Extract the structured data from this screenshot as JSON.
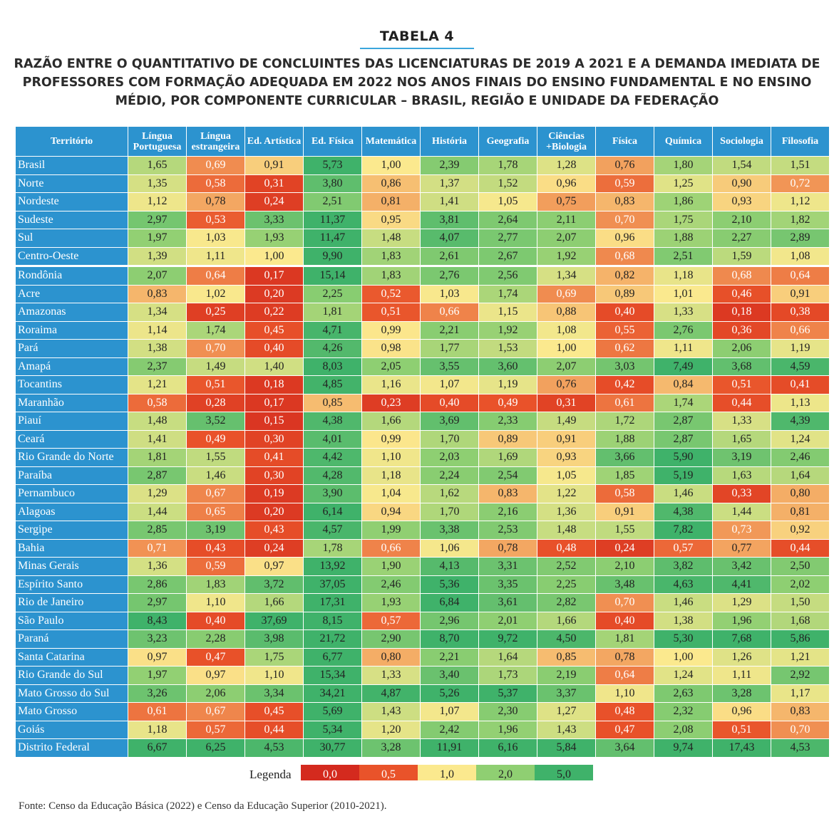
{
  "label": "TABELA 4",
  "title": "RAZÃO ENTRE O QUANTITATIVO DE CONCLUINTES DAS LICENCIATURAS DE 2019 A 2021 E A DEMANDA IMEDIATA DE PROFESSORES COM FORMAÇÃO ADEQUADA EM 2022 NOS ANOS FINAIS DO ENSINO FUNDAMENTAL E NO ENSINO MÉDIO, POR COMPONENTE CURRICULAR – BRASIL, REGIÃO E UNIDADE DA FEDERAÇÃO",
  "table": {
    "headers": [
      "Território",
      "Língua Portuguesa",
      "Língua estrangeira",
      "Ed. Artística",
      "Ed. Física",
      "Matemática",
      "História",
      "Geografia",
      "Ciências +Biologia",
      "Física",
      "Química",
      "Sociologia",
      "Filosofia"
    ],
    "rows": [
      {
        "name": "Brasil",
        "values": [
          "1,65",
          "0,69",
          "0,91",
          "5,73",
          "1,00",
          "2,39",
          "1,78",
          "1,28",
          "0,76",
          "1,80",
          "1,54",
          "1,51"
        ]
      },
      {
        "name": "Norte",
        "values": [
          "1,35",
          "0,58",
          "0,31",
          "3,80",
          "0,86",
          "1,37",
          "1,52",
          "0,96",
          "0,59",
          "1,25",
          "0,90",
          "0,72"
        ]
      },
      {
        "name": "Nordeste",
        "values": [
          "1,12",
          "0,78",
          "0,24",
          "2,51",
          "0,81",
          "1,41",
          "1,05",
          "0,75",
          "0,83",
          "1,86",
          "0,93",
          "1,12"
        ]
      },
      {
        "name": "Sudeste",
        "values": [
          "2,97",
          "0,53",
          "3,33",
          "11,37",
          "0,95",
          "3,81",
          "2,64",
          "2,11",
          "0,70",
          "1,75",
          "2,10",
          "1,82"
        ]
      },
      {
        "name": "Sul",
        "values": [
          "1,97",
          "1,03",
          "1,93",
          "11,47",
          "1,48",
          "4,07",
          "2,77",
          "2,07",
          "0,96",
          "1,88",
          "2,27",
          "2,89"
        ]
      },
      {
        "name": "Centro-Oeste",
        "values": [
          "1,39",
          "1,11",
          "1,00",
          "9,90",
          "1,83",
          "2,61",
          "2,67",
          "1,92",
          "0,68",
          "2,51",
          "1,59",
          "1,08"
        ]
      },
      {
        "name": "Rondônia",
        "values": [
          "2,07",
          "0,64",
          "0,17",
          "15,14",
          "1,83",
          "2,76",
          "2,56",
          "1,34",
          "0,82",
          "1,18",
          "0,68",
          "0,64"
        ]
      },
      {
        "name": "Acre",
        "values": [
          "0,83",
          "1,02",
          "0,20",
          "2,25",
          "0,52",
          "1,03",
          "1,74",
          "0,69",
          "0,89",
          "1,01",
          "0,46",
          "0,91"
        ]
      },
      {
        "name": "Amazonas",
        "values": [
          "1,34",
          "0,25",
          "0,22",
          "1,81",
          "0,51",
          "0,66",
          "1,15",
          "0,88",
          "0,40",
          "1,33",
          "0,18",
          "0,38"
        ]
      },
      {
        "name": "Roraima",
        "values": [
          "1,14",
          "1,74",
          "0,45",
          "4,71",
          "0,99",
          "2,21",
          "1,92",
          "1,08",
          "0,55",
          "2,76",
          "0,36",
          "0,66"
        ]
      },
      {
        "name": "Pará",
        "values": [
          "1,38",
          "0,70",
          "0,40",
          "4,26",
          "0,98",
          "1,77",
          "1,53",
          "1,00",
          "0,62",
          "1,11",
          "2,06",
          "1,19"
        ]
      },
      {
        "name": "Amapá",
        "values": [
          "2,37",
          "1,49",
          "1,40",
          "8,03",
          "2,05",
          "3,55",
          "3,60",
          "2,07",
          "3,03",
          "7,49",
          "3,68",
          "4,59"
        ]
      },
      {
        "name": "Tocantins",
        "values": [
          "1,21",
          "0,51",
          "0,18",
          "4,85",
          "1,16",
          "1,07",
          "1,19",
          "0,76",
          "0,42",
          "0,84",
          "0,51",
          "0,41"
        ]
      },
      {
        "name": "Maranhão",
        "values": [
          "0,58",
          "0,28",
          "0,17",
          "0,85",
          "0,23",
          "0,40",
          "0,49",
          "0,31",
          "0,61",
          "1,74",
          "0,44",
          "1,13"
        ]
      },
      {
        "name": "Piauí",
        "values": [
          "1,48",
          "3,52",
          "0,15",
          "4,38",
          "1,66",
          "3,69",
          "2,33",
          "1,49",
          "1,72",
          "2,87",
          "1,33",
          "4,39"
        ]
      },
      {
        "name": "Ceará",
        "values": [
          "1,41",
          "0,49",
          "0,30",
          "4,01",
          "0,99",
          "1,70",
          "0,89",
          "0,91",
          "1,88",
          "2,87",
          "1,65",
          "1,24"
        ]
      },
      {
        "name": "Rio Grande do Norte",
        "values": [
          "1,81",
          "1,55",
          "0,41",
          "4,42",
          "1,10",
          "2,03",
          "1,69",
          "0,93",
          "3,66",
          "5,90",
          "3,19",
          "2,46"
        ]
      },
      {
        "name": "Paraíba",
        "values": [
          "2,87",
          "1,46",
          "0,30",
          "4,28",
          "1,18",
          "2,24",
          "2,54",
          "1,05",
          "1,85",
          "5,19",
          "1,63",
          "1,64"
        ]
      },
      {
        "name": "Pernambuco",
        "values": [
          "1,29",
          "0,67",
          "0,19",
          "3,90",
          "1,04",
          "1,62",
          "0,83",
          "1,22",
          "0,58",
          "1,46",
          "0,33",
          "0,80"
        ]
      },
      {
        "name": "Alagoas",
        "values": [
          "1,44",
          "0,65",
          "0,20",
          "6,14",
          "0,94",
          "1,70",
          "2,16",
          "1,36",
          "0,91",
          "4,38",
          "1,44",
          "0,81"
        ]
      },
      {
        "name": "Sergipe",
        "values": [
          "2,85",
          "3,19",
          "0,43",
          "4,57",
          "1,99",
          "3,38",
          "2,53",
          "1,48",
          "1,55",
          "7,82",
          "0,73",
          "0,92"
        ]
      },
      {
        "name": "Bahia",
        "values": [
          "0,71",
          "0,43",
          "0,24",
          "1,78",
          "0,66",
          "1,06",
          "0,78",
          "0,48",
          "0,24",
          "0,57",
          "0,77",
          "0,44"
        ]
      },
      {
        "name": "Minas Gerais",
        "values": [
          "1,36",
          "0,59",
          "0,97",
          "13,92",
          "1,90",
          "4,13",
          "3,31",
          "2,52",
          "2,10",
          "3,82",
          "3,42",
          "2,50"
        ]
      },
      {
        "name": "Espírito Santo",
        "values": [
          "2,86",
          "1,83",
          "3,72",
          "37,05",
          "2,46",
          "5,36",
          "3,35",
          "2,25",
          "3,48",
          "4,63",
          "4,41",
          "2,02"
        ]
      },
      {
        "name": "Rio de Janeiro",
        "values": [
          "2,97",
          "1,10",
          "1,66",
          "17,31",
          "1,93",
          "6,84",
          "3,61",
          "2,82",
          "0,70",
          "1,46",
          "1,29",
          "1,50"
        ]
      },
      {
        "name": "São Paulo",
        "values": [
          "8,43",
          "0,40",
          "37,69",
          "8,15",
          "0,57",
          "2,96",
          "2,01",
          "1,66",
          "0,40",
          "1,38",
          "1,96",
          "1,68"
        ]
      },
      {
        "name": "Paraná",
        "values": [
          "3,23",
          "2,28",
          "3,98",
          "21,72",
          "2,90",
          "8,70",
          "9,72",
          "4,50",
          "1,81",
          "5,30",
          "7,68",
          "5,86"
        ]
      },
      {
        "name": "Santa Catarina",
        "values": [
          "0,97",
          "0,47",
          "1,75",
          "6,77",
          "0,80",
          "2,21",
          "1,64",
          "0,85",
          "0,78",
          "1,00",
          "1,26",
          "1,21"
        ]
      },
      {
        "name": "Rio Grande do Sul",
        "values": [
          "1,97",
          "0,97",
          "1,10",
          "15,34",
          "1,33",
          "3,40",
          "1,73",
          "2,19",
          "0,64",
          "1,24",
          "1,11",
          "2,92"
        ]
      },
      {
        "name": "Mato Grosso do Sul",
        "values": [
          "3,26",
          "2,06",
          "3,34",
          "34,21",
          "4,87",
          "5,26",
          "5,37",
          "3,37",
          "1,10",
          "2,63",
          "3,28",
          "1,17"
        ]
      },
      {
        "name": "Mato Grosso",
        "values": [
          "0,61",
          "0,67",
          "0,45",
          "5,69",
          "1,43",
          "1,07",
          "2,30",
          "1,27",
          "0,48",
          "2,32",
          "0,96",
          "0,83"
        ]
      },
      {
        "name": "Goiás",
        "values": [
          "1,18",
          "0,57",
          "0,44",
          "5,34",
          "1,20",
          "2,42",
          "1,96",
          "1,43",
          "0,47",
          "2,08",
          "0,51",
          "0,70"
        ]
      },
      {
        "name": "Distrito Federal",
        "values": [
          "6,67",
          "6,25",
          "4,53",
          "30,77",
          "3,28",
          "11,91",
          "6,16",
          "5,84",
          "3,64",
          "9,74",
          "17,43",
          "4,53"
        ]
      }
    ]
  },
  "legend": {
    "label": "Legenda",
    "items": [
      {
        "text": "0,0",
        "color": "#d42a1e"
      },
      {
        "text": "0,5",
        "color": "#e9532a"
      },
      {
        "text": "1,0",
        "color": "#fbe98e"
      },
      {
        "text": "2,0",
        "color": "#8fcf72"
      },
      {
        "text": "5,0",
        "color": "#3fb26a"
      }
    ]
  },
  "source": "Fonte: Censo da Educação Básica (2022) e Censo da Educação Superior (2010-2021)."
}
